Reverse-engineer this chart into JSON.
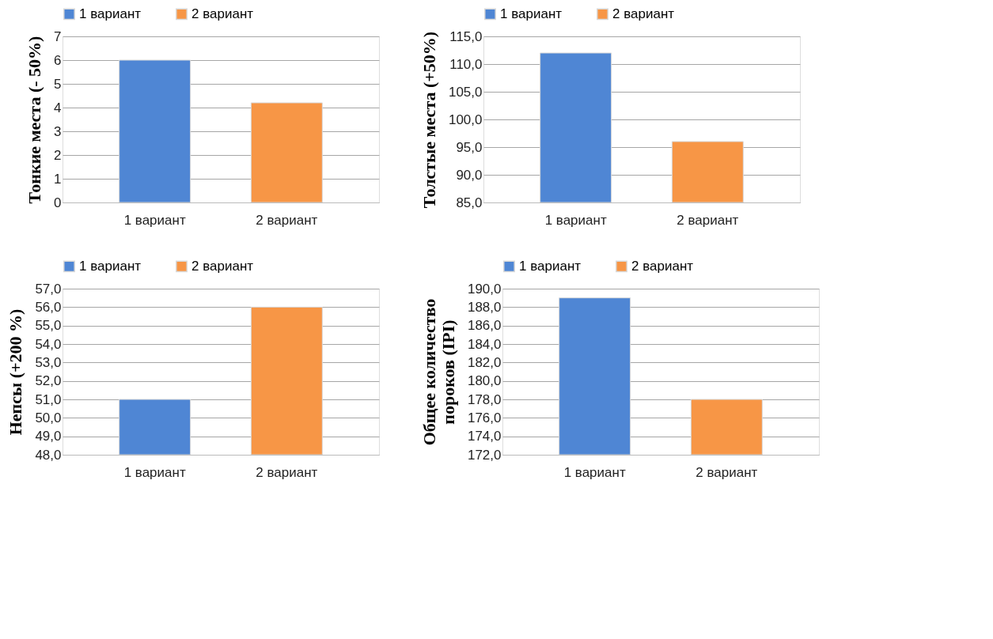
{
  "chart_data": [
    {
      "type": "bar",
      "ylabel": "Тонкие места  (- 50%)",
      "categories": [
        "1 вариант",
        "2 вариант"
      ],
      "series": [
        {
          "name": "1 вариант",
          "color": "#4f86d4",
          "values": [
            6,
            null
          ]
        },
        {
          "name": "2 вариант",
          "color": "#f79646",
          "values": [
            null,
            4.2
          ]
        }
      ],
      "ylim": [
        0,
        7
      ],
      "yticks": [
        0,
        1,
        2,
        3,
        4,
        5,
        6,
        7
      ],
      "grid": "y",
      "legend": "top"
    },
    {
      "type": "bar",
      "ylabel": "Толстые места (+50%)",
      "categories": [
        "1 вариант",
        "2 вариант"
      ],
      "series": [
        {
          "name": "1 вариант",
          "color": "#4f86d4",
          "values": [
            112,
            null
          ]
        },
        {
          "name": "2 вариант",
          "color": "#f79646",
          "values": [
            null,
            96
          ]
        }
      ],
      "ylim": [
        85,
        115
      ],
      "yticks": [
        {
          "value": 85,
          "label": "85,0"
        },
        {
          "value": 90,
          "label": "90,0"
        },
        {
          "value": 95,
          "label": "95,0"
        },
        {
          "value": 100,
          "label": "100,0"
        },
        {
          "value": 105,
          "label": "105,0"
        },
        {
          "value": 110,
          "label": "110,0"
        },
        {
          "value": 115,
          "label": "115,0"
        }
      ],
      "grid": "y",
      "legend": "top"
    },
    {
      "type": "bar",
      "ylabel": "Непсы  (+200 %)",
      "categories": [
        "1 вариант",
        "2 вариант"
      ],
      "series": [
        {
          "name": "1 вариант",
          "color": "#4f86d4",
          "values": [
            51,
            null
          ]
        },
        {
          "name": "2 вариант",
          "color": "#f79646",
          "values": [
            null,
            56
          ]
        }
      ],
      "ylim": [
        48,
        57
      ],
      "yticks": [
        {
          "value": 48,
          "label": "48,0"
        },
        {
          "value": 49,
          "label": "49,0"
        },
        {
          "value": 50,
          "label": "50,0"
        },
        {
          "value": 51,
          "label": "51,0"
        },
        {
          "value": 52,
          "label": "52,0"
        },
        {
          "value": 53,
          "label": "53,0"
        },
        {
          "value": 54,
          "label": "54,0"
        },
        {
          "value": 55,
          "label": "55,0"
        },
        {
          "value": 56,
          "label": "56,0"
        },
        {
          "value": 57,
          "label": "57,0"
        }
      ],
      "grid": "y",
      "legend": "top"
    },
    {
      "type": "bar",
      "ylabel": "Общее количество пороков (IPI)",
      "categories": [
        "1 вариант",
        "2 вариант"
      ],
      "series": [
        {
          "name": "1 вариант",
          "color": "#4f86d4",
          "values": [
            189,
            null
          ]
        },
        {
          "name": "2 вариант",
          "color": "#f79646",
          "values": [
            null,
            178
          ]
        }
      ],
      "ylim": [
        172,
        190
      ],
      "yticks": [
        {
          "value": 172,
          "label": "172,0"
        },
        {
          "value": 174,
          "label": "174,0"
        },
        {
          "value": 176,
          "label": "176,0"
        },
        {
          "value": 178,
          "label": "178,0"
        },
        {
          "value": 180,
          "label": "180,0"
        },
        {
          "value": 182,
          "label": "182,0"
        },
        {
          "value": 184,
          "label": "184,0"
        },
        {
          "value": 186,
          "label": "186,0"
        },
        {
          "value": 188,
          "label": "188,0"
        },
        {
          "value": 190,
          "label": "190,0"
        }
      ],
      "grid": "y",
      "legend": "top"
    }
  ]
}
